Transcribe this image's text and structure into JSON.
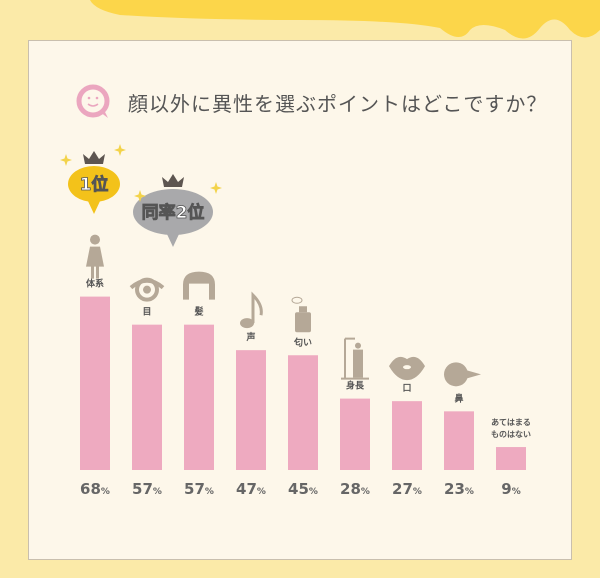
{
  "chart_data": {
    "type": "bar",
    "title": "顔以外に異性を選ぶポイントはどこですか？",
    "categories": [
      "体系",
      "目",
      "髪",
      "声",
      "匂い",
      "身長",
      "口",
      "鼻",
      "あてはまるものはない"
    ],
    "category_lines": [
      [
        "体系"
      ],
      [
        "目"
      ],
      [
        "髪"
      ],
      [
        "声"
      ],
      [
        "匂い"
      ],
      [
        "身長"
      ],
      [
        "口"
      ],
      [
        "鼻"
      ],
      [
        "あてはまる",
        "ものはない"
      ]
    ],
    "icons": [
      "woman-icon",
      "eye-icon",
      "hair-icon",
      "music-note-icon",
      "perfume-icon",
      "height-scale-icon",
      "lips-icon",
      "nose-icon",
      ""
    ],
    "values": [
      68,
      57,
      57,
      47,
      45,
      28,
      27,
      23,
      9
    ],
    "value_labels": [
      "68",
      "57",
      "57",
      "47",
      "45",
      "28",
      "27",
      "23",
      "9"
    ],
    "unit": "%",
    "badges": {
      "first": "1位",
      "second": "同率2位"
    },
    "colors": {
      "bar": "#eeaac0",
      "icon": "#b5a897",
      "first": "#f3c21a",
      "second": "#a9a9ab"
    }
  }
}
